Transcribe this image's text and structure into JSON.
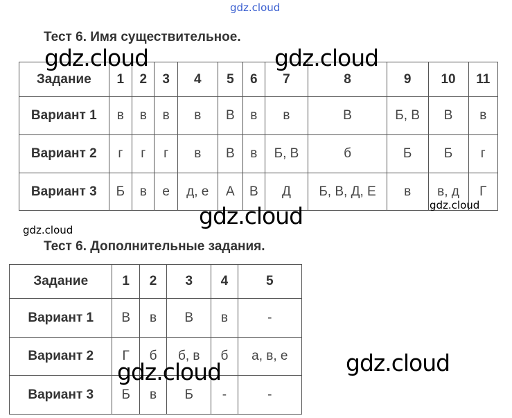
{
  "watermark": "gdz.cloud",
  "table1": {
    "title": "Тест 6. Имя существительное.",
    "header": [
      "Задание",
      "1",
      "2",
      "3",
      "4",
      "5",
      "6",
      "7",
      "8",
      "9",
      "10",
      "11"
    ],
    "rows": [
      [
        "Вариант 1",
        "в",
        "в",
        "в",
        "в",
        "В",
        "в",
        "в",
        "В",
        "Б, В",
        "В",
        "в"
      ],
      [
        "Вариант 2",
        "г",
        "г",
        "г",
        "в",
        "В",
        "в",
        "Б, В",
        "б",
        "Б",
        "Б",
        "г"
      ],
      [
        "Вариант 3",
        "Б",
        "в",
        "е",
        "д, е",
        "А",
        "В",
        "Д",
        "Б, В, Д, Е",
        "в",
        "в, д",
        "Г"
      ]
    ]
  },
  "table2": {
    "title": "Тест 6. Дополнительные задания.",
    "header": [
      "Задание",
      "1",
      "2",
      "3",
      "4",
      "5"
    ],
    "rows": [
      [
        "Вариант 1",
        "В",
        "в",
        "В",
        "в",
        "-"
      ],
      [
        "Вариант 2",
        "Г",
        "б",
        "б, в",
        "б",
        "а, в, е"
      ],
      [
        "Вариант 3",
        "Б",
        "в",
        "Б",
        "-",
        "-"
      ]
    ]
  }
}
